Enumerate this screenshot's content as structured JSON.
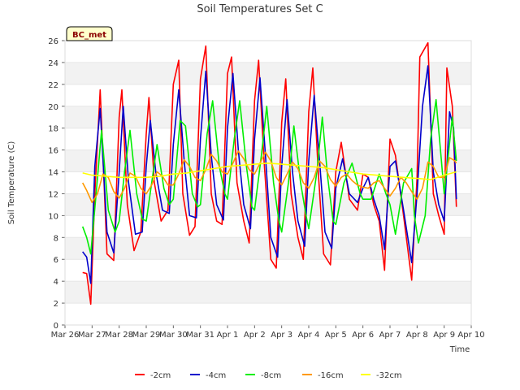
{
  "chart_data": {
    "type": "line",
    "title": "Soil Temperatures Set C",
    "xlabel": "Time",
    "ylabel": "Soil Temperature (C)",
    "ylim": [
      0,
      26
    ],
    "yticks": [
      0,
      2,
      4,
      6,
      8,
      10,
      12,
      14,
      16,
      18,
      20,
      22,
      24,
      26
    ],
    "xlim": [
      0,
      15
    ],
    "xticks": [
      "Mar 26",
      "Mar 27",
      "Mar 28",
      "Mar 29",
      "Mar 30",
      "Mar 31",
      "Apr 1",
      "Apr 2",
      "Apr 3",
      "Apr 4",
      "Apr 5",
      "Apr 6",
      "Apr 7",
      "Apr 8",
      "Apr 9",
      "Apr 10"
    ],
    "grid": "horizontal bands",
    "legend_position": "bottom-center",
    "badge": "BC_met",
    "colors": {
      "-2cm": "#ff0000",
      "-4cm": "#0000cc",
      "-8cm": "#00ee00",
      "-16cm": "#ff9900",
      "-32cm": "#ffff00"
    },
    "series": [
      {
        "name": "-2cm",
        "x": [
          0.65,
          0.8,
          0.95,
          1.1,
          1.3,
          1.55,
          1.8,
          2.0,
          2.1,
          2.3,
          2.55,
          2.8,
          3.0,
          3.1,
          3.3,
          3.55,
          3.8,
          4.0,
          4.2,
          4.35,
          4.6,
          4.8,
          5.0,
          5.2,
          5.4,
          5.6,
          5.8,
          6.0,
          6.15,
          6.35,
          6.6,
          6.8,
          7.0,
          7.15,
          7.35,
          7.6,
          7.8,
          8.0,
          8.15,
          8.35,
          8.6,
          8.8,
          9.0,
          9.15,
          9.35,
          9.55,
          9.8,
          10.0,
          10.2,
          10.5,
          10.8,
          11.0,
          11.2,
          11.4,
          11.6,
          11.8,
          12.0,
          12.2,
          12.5,
          12.8,
          13.0,
          13.1,
          13.4,
          13.6,
          13.8,
          14.0,
          14.1,
          14.3,
          14.45
        ],
        "values": [
          4.8,
          4.7,
          1.9,
          12.0,
          21.5,
          6.5,
          5.9,
          19.0,
          21.5,
          11.0,
          6.8,
          8.5,
          17.5,
          20.8,
          13.0,
          9.5,
          10.5,
          22.0,
          24.2,
          12.0,
          8.2,
          9.0,
          22.5,
          25.5,
          12.0,
          9.5,
          9.2,
          23.0,
          24.5,
          13.0,
          9.5,
          7.5,
          20.5,
          24.2,
          15.0,
          6.0,
          5.2,
          18.5,
          22.5,
          12.0,
          8.0,
          6.0,
          19.5,
          23.5,
          14.0,
          6.5,
          5.5,
          14.0,
          16.7,
          11.5,
          10.5,
          13.8,
          13.5,
          11.0,
          9.5,
          5.0,
          17.0,
          15.5,
          10.0,
          4.1,
          13.5,
          24.5,
          25.8,
          12.0,
          10.0,
          8.3,
          23.5,
          20.0,
          10.8
        ]
      },
      {
        "name": "-4cm",
        "x": [
          0.65,
          0.8,
          0.95,
          1.1,
          1.3,
          1.55,
          1.8,
          2.0,
          2.15,
          2.35,
          2.6,
          2.85,
          3.0,
          3.15,
          3.35,
          3.6,
          3.85,
          4.0,
          4.2,
          4.4,
          4.6,
          4.85,
          5.0,
          5.2,
          5.4,
          5.6,
          5.85,
          6.0,
          6.2,
          6.4,
          6.6,
          6.85,
          7.0,
          7.2,
          7.4,
          7.6,
          7.85,
          8.0,
          8.2,
          8.4,
          8.6,
          8.85,
          9.0,
          9.2,
          9.4,
          9.6,
          9.85,
          10.0,
          10.25,
          10.5,
          10.8,
          11.0,
          11.2,
          11.4,
          11.6,
          11.8,
          12.0,
          12.2,
          12.5,
          12.8,
          13.0,
          13.2,
          13.4,
          13.6,
          13.8,
          14.0,
          14.2,
          14.35,
          14.45
        ],
        "values": [
          6.7,
          6.2,
          3.8,
          14.5,
          19.8,
          8.5,
          6.6,
          14.0,
          20.0,
          13.0,
          8.3,
          8.5,
          14.5,
          18.7,
          14.0,
          10.5,
          10.2,
          16.5,
          21.5,
          15.0,
          10.0,
          9.8,
          17.0,
          23.2,
          15.5,
          11.0,
          9.6,
          18.0,
          23.0,
          16.0,
          11.0,
          8.8,
          17.0,
          22.6,
          15.5,
          8.0,
          6.2,
          14.5,
          20.6,
          14.0,
          9.5,
          7.2,
          15.0,
          21.0,
          15.0,
          8.5,
          7.0,
          12.5,
          15.2,
          12.0,
          11.2,
          12.5,
          13.5,
          11.5,
          10.0,
          6.9,
          14.5,
          15.0,
          10.5,
          5.7,
          12.0,
          20.0,
          23.7,
          14.0,
          11.0,
          9.5,
          19.5,
          18.0,
          11.5
        ]
      },
      {
        "name": "-8cm",
        "x": [
          0.65,
          0.8,
          0.95,
          1.15,
          1.35,
          1.6,
          1.85,
          2.0,
          2.2,
          2.4,
          2.65,
          2.85,
          3.0,
          3.2,
          3.4,
          3.65,
          3.85,
          4.0,
          4.25,
          4.45,
          4.7,
          4.9,
          5.0,
          5.25,
          5.45,
          5.7,
          5.9,
          6.0,
          6.25,
          6.45,
          6.7,
          6.9,
          7.0,
          7.25,
          7.45,
          7.7,
          7.9,
          8.0,
          8.25,
          8.45,
          8.7,
          8.9,
          9.0,
          9.3,
          9.5,
          9.7,
          9.9,
          10.0,
          10.3,
          10.6,
          10.9,
          11.0,
          11.3,
          11.6,
          11.85,
          12.0,
          12.2,
          12.5,
          12.8,
          12.9,
          13.05,
          13.3,
          13.5,
          13.7,
          13.9,
          14.0,
          14.3,
          14.45
        ],
        "values": [
          9.0,
          8.0,
          6.5,
          12.0,
          17.8,
          10.5,
          8.5,
          9.5,
          14.0,
          17.8,
          12.0,
          9.7,
          9.5,
          13.0,
          16.5,
          12.5,
          11.0,
          11.5,
          18.7,
          18.2,
          12.0,
          10.8,
          11.0,
          17.5,
          20.5,
          14.5,
          12.0,
          11.5,
          17.0,
          20.5,
          14.5,
          10.8,
          10.5,
          15.5,
          20.0,
          13.0,
          9.5,
          8.5,
          13.0,
          18.2,
          13.0,
          10.0,
          8.8,
          14.0,
          19.0,
          13.5,
          9.5,
          9.2,
          13.0,
          14.8,
          12.0,
          11.5,
          11.5,
          13.8,
          12.0,
          11.0,
          8.3,
          13.0,
          14.3,
          10.0,
          7.5,
          10.0,
          17.0,
          20.6,
          15.0,
          12.0,
          19.0,
          15.0
        ]
      },
      {
        "name": "-16cm",
        "x": [
          0.65,
          0.8,
          1.0,
          1.2,
          1.4,
          1.6,
          1.8,
          2.0,
          2.2,
          2.4,
          2.6,
          2.8,
          3.0,
          3.2,
          3.4,
          3.6,
          3.8,
          4.0,
          4.2,
          4.4,
          4.6,
          4.8,
          5.0,
          5.2,
          5.4,
          5.6,
          5.8,
          6.0,
          6.2,
          6.4,
          6.6,
          6.8,
          7.0,
          7.2,
          7.4,
          7.6,
          7.8,
          8.0,
          8.2,
          8.4,
          8.6,
          8.8,
          9.0,
          9.2,
          9.4,
          9.6,
          9.8,
          10.0,
          10.2,
          10.4,
          10.6,
          10.8,
          11.0,
          11.2,
          11.4,
          11.6,
          11.8,
          12.0,
          12.2,
          12.4,
          12.6,
          12.8,
          13.0,
          13.2,
          13.4,
          13.6,
          13.8,
          14.0,
          14.2,
          14.4,
          14.45
        ],
        "values": [
          13.0,
          12.3,
          11.2,
          12.0,
          13.8,
          13.5,
          12.2,
          11.6,
          12.5,
          13.9,
          13.6,
          12.5,
          12.0,
          12.8,
          14.0,
          13.6,
          12.8,
          12.8,
          13.8,
          15.1,
          14.5,
          13.5,
          13.2,
          14.2,
          15.6,
          15.0,
          14.0,
          13.8,
          14.8,
          15.9,
          15.2,
          14.2,
          13.8,
          14.8,
          15.8,
          15.0,
          13.5,
          12.8,
          13.8,
          14.9,
          14.3,
          13.0,
          12.5,
          13.5,
          15.0,
          14.5,
          13.3,
          12.7,
          13.5,
          13.8,
          13.2,
          12.8,
          12.6,
          12.5,
          13.0,
          13.2,
          12.5,
          11.8,
          12.5,
          13.5,
          13.0,
          12.2,
          11.5,
          12.5,
          14.9,
          14.5,
          13.5,
          13.5,
          15.3,
          15.0,
          14.8
        ]
      },
      {
        "name": "-32cm",
        "x": [
          0.65,
          1.0,
          1.5,
          2.0,
          2.5,
          3.0,
          3.5,
          4.0,
          4.5,
          5.0,
          5.5,
          6.0,
          6.5,
          7.0,
          7.5,
          8.0,
          8.5,
          9.0,
          9.5,
          10.0,
          10.5,
          11.0,
          11.5,
          12.0,
          12.5,
          13.0,
          13.5,
          14.0,
          14.45
        ],
        "values": [
          13.9,
          13.7,
          13.6,
          13.5,
          13.5,
          13.5,
          13.6,
          13.8,
          13.9,
          14.1,
          14.3,
          14.5,
          14.6,
          14.7,
          14.8,
          14.7,
          14.6,
          14.5,
          14.4,
          14.2,
          14.0,
          13.8,
          13.7,
          13.6,
          13.5,
          13.4,
          13.3,
          13.7,
          14.0
        ]
      }
    ]
  }
}
